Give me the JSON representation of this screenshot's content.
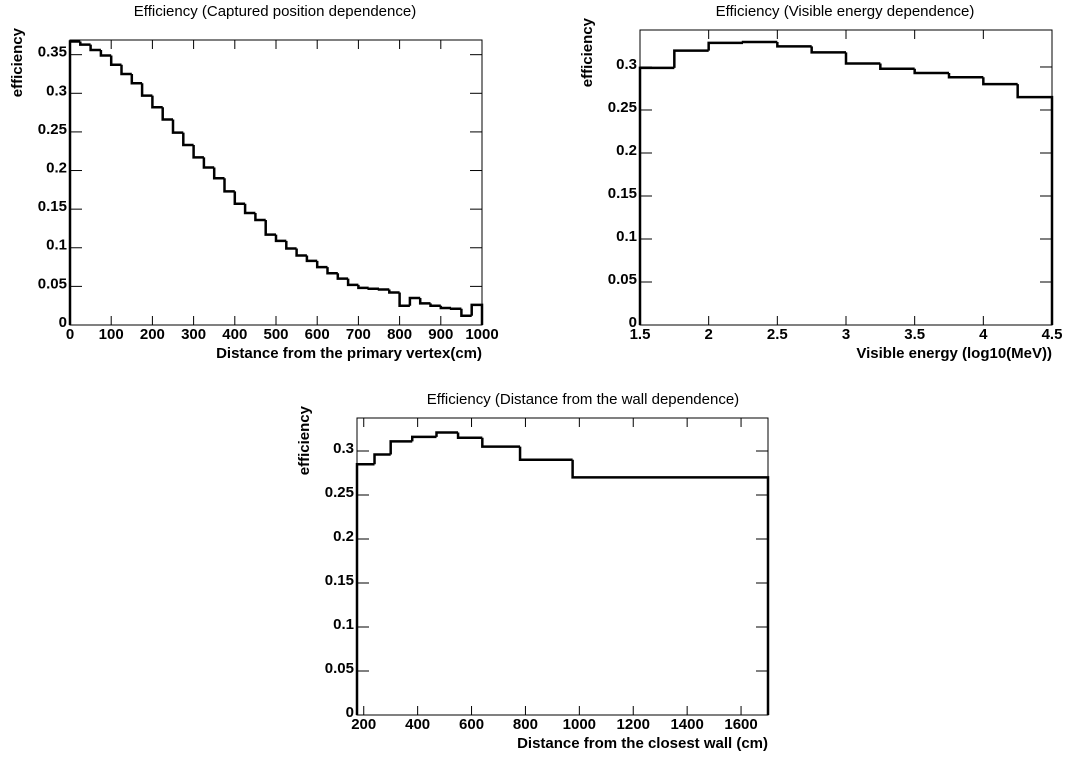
{
  "chart_data": [
    {
      "type": "histogram",
      "title": "Efficiency (Captured position dependence)",
      "xlabel": "Distance from the primary vertex(cm)",
      "ylabel": "efficiency",
      "color": "#000000",
      "bins": [
        0,
        25,
        50,
        75,
        100,
        125,
        150,
        175,
        200,
        225,
        250,
        275,
        300,
        325,
        350,
        375,
        400,
        425,
        450,
        475,
        500,
        525,
        550,
        575,
        600,
        625,
        650,
        675,
        700,
        725,
        750,
        775,
        800,
        825,
        850,
        875,
        900,
        925,
        950,
        975,
        1000
      ],
      "values": [
        0.367,
        0.363,
        0.356,
        0.349,
        0.337,
        0.325,
        0.313,
        0.297,
        0.282,
        0.266,
        0.249,
        0.233,
        0.217,
        0.204,
        0.19,
        0.173,
        0.157,
        0.145,
        0.136,
        0.117,
        0.109,
        0.099,
        0.09,
        0.083,
        0.075,
        0.067,
        0.06,
        0.052,
        0.048,
        0.047,
        0.046,
        0.042,
        0.025,
        0.035,
        0.028,
        0.025,
        0.022,
        0.021,
        0.012,
        0.026
      ],
      "xlim": [
        0,
        1000
      ],
      "ylim": [
        0,
        0.369
      ],
      "xticks": [
        0,
        100,
        200,
        300,
        400,
        500,
        600,
        700,
        800,
        900,
        1000
      ],
      "yticks": [
        0,
        0.05,
        0.1,
        0.15,
        0.2,
        0.25,
        0.3,
        0.35
      ]
    },
    {
      "type": "histogram",
      "title": "Efficiency (Visible energy dependence)",
      "xlabel": "Visible energy (log10(MeV))",
      "ylabel": "efficiency",
      "color": "#000000",
      "bins": [
        1.5,
        1.75,
        2,
        2.25,
        2.5,
        2.75,
        3,
        3.25,
        3.5,
        3.75,
        4,
        4.25,
        4.5
      ],
      "values": [
        0.299,
        0.319,
        0.328,
        0.329,
        0.324,
        0.317,
        0.304,
        0.298,
        0.293,
        0.288,
        0.28,
        0.265
      ],
      "xlim": [
        1.5,
        4.5
      ],
      "ylim": [
        0,
        0.343
      ],
      "xticks": [
        1.5,
        2,
        2.5,
        3,
        3.5,
        4,
        4.5
      ],
      "yticks": [
        0,
        0.05,
        0.1,
        0.15,
        0.2,
        0.25,
        0.3
      ]
    },
    {
      "type": "histogram",
      "title": "Efficiency (Distance from the wall dependence)",
      "xlabel": "Distance from the closest wall (cm)",
      "ylabel": "efficiency",
      "color": "#000000",
      "bins": [
        175,
        240,
        300,
        380,
        470,
        550,
        640,
        780,
        975,
        1700
      ],
      "values": [
        0.285,
        0.296,
        0.311,
        0.316,
        0.321,
        0.315,
        0.305,
        0.29,
        0.27
      ],
      "xlim": [
        175,
        1700
      ],
      "ylim": [
        0,
        0.3375
      ],
      "xticks": [
        200,
        400,
        600,
        800,
        1000,
        1200,
        1400,
        1600
      ],
      "yticks": [
        0,
        0.05,
        0.1,
        0.15,
        0.2,
        0.25,
        0.3
      ]
    }
  ]
}
